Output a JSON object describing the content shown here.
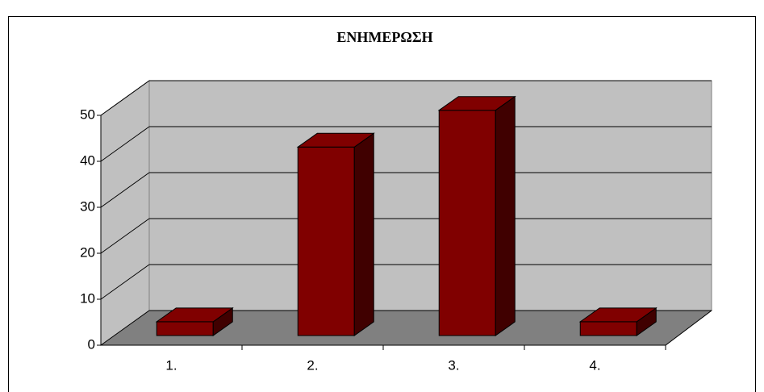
{
  "chart_data": {
    "type": "bar",
    "title": "ΕΝΗΜΕΡΩΣΗ",
    "categories": [
      "1.",
      "2.",
      "3.",
      "4."
    ],
    "values": [
      3,
      41,
      49,
      3
    ],
    "color": "#800000",
    "ylim": [
      0,
      50
    ],
    "yticks": [
      0,
      10,
      20,
      30,
      40,
      50
    ],
    "grid": true
  }
}
